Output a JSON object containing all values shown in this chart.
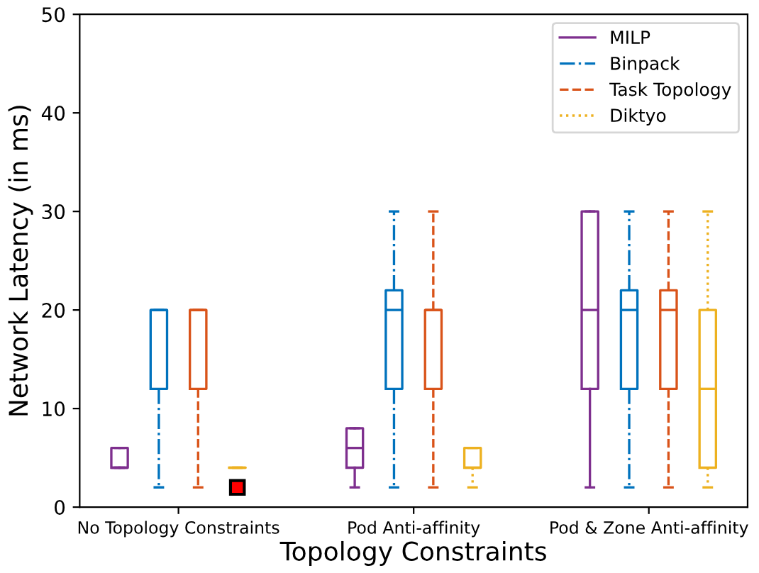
{
  "chart_data": {
    "type": "box",
    "xlabel": "Topology Constraints",
    "ylabel": "Network Latency (in ms)",
    "categories": [
      "No Topology Constraints",
      "Pod Anti-affinity",
      "Pod & Zone Anti-affinity"
    ],
    "ylim": [
      0,
      50
    ],
    "yticks": [
      0,
      10,
      20,
      30,
      40,
      50
    ],
    "legend": "top right",
    "grid": false,
    "marker": "square",
    "series": [
      {
        "name": "MILP",
        "color": "#7e2f8e",
        "line_style": "solid",
        "boxes": [
          {
            "low": 4,
            "q1": 4,
            "median": 4,
            "q3": 6,
            "high": 6
          },
          {
            "low": 2,
            "q1": 4,
            "median": 6,
            "q3": 8,
            "high": 8
          },
          {
            "low": 2,
            "q1": 12,
            "median": 20,
            "q3": 30,
            "high": 30
          }
        ]
      },
      {
        "name": "Binpack",
        "color": "#0072bd",
        "line_style": "dashdot",
        "boxes": [
          {
            "low": 2,
            "q1": 12,
            "median": 20,
            "q3": 20,
            "high": 20
          },
          {
            "low": 2,
            "q1": 12,
            "median": 20,
            "q3": 22,
            "high": 30
          },
          {
            "low": 2,
            "q1": 12,
            "median": 20,
            "q3": 22,
            "high": 30
          }
        ]
      },
      {
        "name": "Task Topology",
        "color": "#d95319",
        "line_style": "dashed",
        "boxes": [
          {
            "low": 2,
            "q1": 12,
            "median": 20,
            "q3": 20,
            "high": 20
          },
          {
            "low": 2,
            "q1": 12,
            "median": 20,
            "q3": 20,
            "high": 30
          },
          {
            "low": 2,
            "q1": 12,
            "median": 20,
            "q3": 22,
            "high": 30
          }
        ]
      },
      {
        "name": "Diktyo",
        "color": "#edb120",
        "line_style": "dotted",
        "boxes": [
          {
            "low": 4,
            "q1": 4,
            "median": 4,
            "q3": 4,
            "high": 4,
            "outliers": [
              2
            ]
          },
          {
            "low": 2,
            "q1": 4,
            "median": 4,
            "q3": 6,
            "high": 6
          },
          {
            "low": 2,
            "q1": 4,
            "median": 12,
            "q3": 20,
            "high": 30
          }
        ]
      }
    ]
  }
}
